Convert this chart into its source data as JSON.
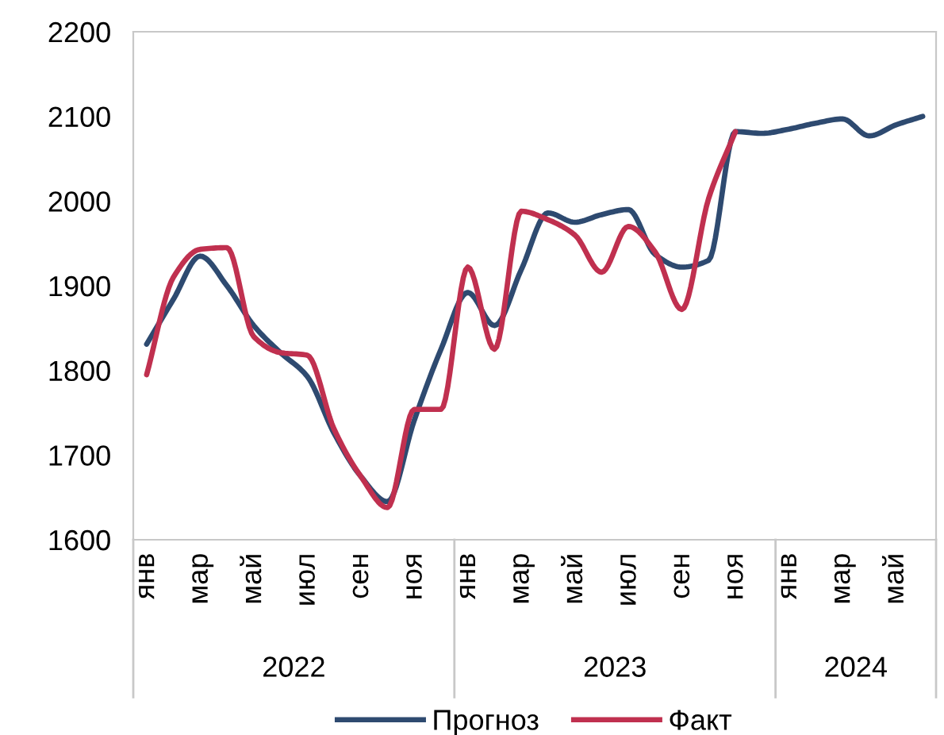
{
  "chart_data": {
    "type": "line",
    "categories": [
      "янв",
      null,
      "мар",
      null,
      "май",
      null,
      "июл",
      null,
      "сен",
      null,
      "ноя",
      null,
      "янв",
      null,
      "мар",
      null,
      "май",
      null,
      "июл",
      null,
      "сен",
      null,
      "ноя",
      null,
      "янв",
      null,
      "мар",
      null,
      "май",
      null
    ],
    "series": [
      {
        "name": "Прогноз",
        "color": "#2e4a70",
        "values": [
          1831,
          1884,
          1935,
          1900,
          1853,
          1821,
          1793,
          1726,
          1675,
          1645,
          1741,
          1825,
          1892,
          1853,
          1919,
          1986,
          1975,
          1984,
          1990,
          1937,
          1922,
          1930,
          2082,
          2080,
          2085,
          2092,
          2097,
          2077,
          2090,
          2100
        ]
      },
      {
        "name": "Факт",
        "color": "#c0304f",
        "values": [
          1795,
          1910,
          1943,
          1945,
          1840,
          1821,
          1818,
          1731,
          1675,
          1638,
          1754,
          1754,
          1922,
          1825,
          1988,
          1978,
          1960,
          1916,
          1970,
          1940,
          1872,
          2003,
          2082,
          null,
          null,
          null,
          null,
          null,
          null,
          null
        ]
      }
    ],
    "annotations": [
      "2022",
      "2023",
      "2024"
    ],
    "ylim": [
      1600,
      2200
    ],
    "yticks": [
      1600,
      1700,
      1800,
      1900,
      2000,
      2100,
      2200
    ],
    "grid": false,
    "legend": "bottom",
    "marker": "none",
    "line_style": "solid"
  }
}
